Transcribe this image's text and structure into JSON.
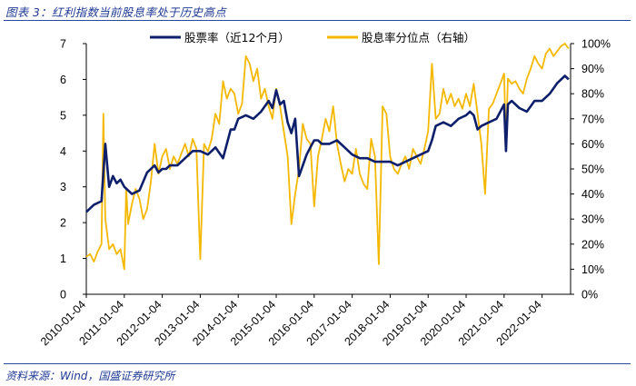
{
  "header": {
    "title": "图表 3：红利指数当前股息率处于历史高点"
  },
  "footer": {
    "source": "资料来源：Wind，国盛证券研究所"
  },
  "colors": {
    "dividend_yield": "#0d1f6b",
    "percentile": "#f5b800",
    "rule": "#2b4a9e"
  },
  "chart_data": {
    "type": "line",
    "title": "",
    "xlabel": "",
    "ylabel": "",
    "ylim_left": [
      0,
      7
    ],
    "ylim_right": [
      0,
      1
    ],
    "y_ticks_left": [
      "0",
      "1",
      "2",
      "3",
      "4",
      "5",
      "6",
      "7"
    ],
    "y_ticks_right": [
      "0%",
      "10%",
      "20%",
      "30%",
      "40%",
      "50%",
      "60%",
      "70%",
      "80%",
      "90%",
      "100%"
    ],
    "x_ticks": [
      "2010-01-04",
      "2011-01-04",
      "2012-01-04",
      "2013-01-04",
      "2014-01-04",
      "2015-01-04",
      "2016-01-04",
      "2017-01-04",
      "2018-01-04",
      "2019-01-04",
      "2020-01-04",
      "2021-01-04",
      "2022-01-04"
    ],
    "x_range": [
      2010.0,
      2022.75
    ],
    "legend": {
      "placement": "top"
    },
    "grid": false,
    "series": [
      {
        "name": "股票率（近12个月）",
        "axis": "left",
        "color": "#0d1f6b",
        "x": [
          2010.0,
          2010.2,
          2010.4,
          2010.5,
          2010.6,
          2010.7,
          2010.8,
          2010.9,
          2011.0,
          2011.2,
          2011.4,
          2011.6,
          2011.8,
          2011.9,
          2012.0,
          2012.1,
          2012.2,
          2012.4,
          2012.6,
          2012.8,
          2013.0,
          2013.2,
          2013.4,
          2013.6,
          2013.8,
          2013.9,
          2014.0,
          2014.2,
          2014.4,
          2014.6,
          2014.8,
          2014.9,
          2015.0,
          2015.1,
          2015.2,
          2015.3,
          2015.4,
          2015.5,
          2015.6,
          2015.7,
          2015.8,
          2015.9,
          2016.0,
          2016.1,
          2016.2,
          2016.4,
          2016.6,
          2016.8,
          2017.0,
          2017.2,
          2017.4,
          2017.6,
          2017.8,
          2018.0,
          2018.2,
          2018.4,
          2018.6,
          2018.8,
          2019.0,
          2019.1,
          2019.2,
          2019.4,
          2019.6,
          2019.8,
          2020.0,
          2020.1,
          2020.2,
          2020.3,
          2020.4,
          2020.6,
          2020.8,
          2021.0,
          2021.05,
          2021.1,
          2021.2,
          2021.4,
          2021.6,
          2021.8,
          2022.0,
          2022.2,
          2022.4,
          2022.6,
          2022.7
        ],
        "y": [
          2.3,
          2.5,
          2.6,
          4.2,
          3.0,
          3.3,
          3.1,
          3.2,
          3.0,
          2.8,
          2.9,
          3.4,
          3.6,
          3.4,
          3.5,
          3.5,
          3.6,
          3.6,
          3.8,
          4.0,
          4.0,
          3.9,
          4.1,
          3.8,
          4.6,
          4.6,
          4.9,
          5.0,
          4.9,
          5.1,
          5.4,
          5.2,
          5.7,
          5.3,
          5.4,
          4.8,
          4.5,
          4.9,
          3.3,
          3.6,
          3.9,
          4.1,
          4.3,
          4.3,
          4.2,
          4.2,
          4.3,
          4.1,
          3.9,
          3.8,
          3.8,
          3.7,
          3.7,
          3.7,
          3.6,
          3.7,
          3.8,
          3.9,
          4.0,
          4.3,
          4.7,
          4.8,
          4.7,
          4.9,
          5.0,
          5.1,
          5.0,
          4.6,
          4.7,
          4.8,
          4.9,
          5.3,
          4.0,
          5.3,
          5.4,
          5.2,
          5.1,
          5.4,
          5.4,
          5.6,
          5.9,
          6.1,
          6.0
        ]
      },
      {
        "name": "股息率分位点（右轴）",
        "axis": "right",
        "color": "#f5b800",
        "x": [
          2010.0,
          2010.1,
          2010.2,
          2010.3,
          2010.4,
          2010.45,
          2010.5,
          2010.6,
          2010.7,
          2010.8,
          2010.9,
          2011.0,
          2011.05,
          2011.1,
          2011.2,
          2011.3,
          2011.4,
          2011.5,
          2011.6,
          2011.7,
          2011.8,
          2011.9,
          2012.0,
          2012.1,
          2012.2,
          2012.3,
          2012.4,
          2012.5,
          2012.6,
          2012.7,
          2012.8,
          2012.9,
          2013.0,
          2013.1,
          2013.2,
          2013.3,
          2013.4,
          2013.5,
          2013.6,
          2013.7,
          2013.8,
          2013.9,
          2014.0,
          2014.1,
          2014.2,
          2014.3,
          2014.4,
          2014.5,
          2014.6,
          2014.7,
          2014.8,
          2014.9,
          2015.0,
          2015.1,
          2015.2,
          2015.3,
          2015.4,
          2015.5,
          2015.6,
          2015.7,
          2015.8,
          2015.9,
          2016.0,
          2016.1,
          2016.2,
          2016.3,
          2016.4,
          2016.5,
          2016.6,
          2016.7,
          2016.8,
          2016.9,
          2017.0,
          2017.1,
          2017.2,
          2017.3,
          2017.4,
          2017.5,
          2017.6,
          2017.7,
          2017.8,
          2017.9,
          2018.0,
          2018.1,
          2018.2,
          2018.3,
          2018.4,
          2018.5,
          2018.6,
          2018.7,
          2018.8,
          2018.9,
          2019.0,
          2019.1,
          2019.2,
          2019.3,
          2019.4,
          2019.5,
          2019.6,
          2019.7,
          2019.8,
          2019.9,
          2020.0,
          2020.1,
          2020.2,
          2020.3,
          2020.4,
          2020.5,
          2020.6,
          2020.7,
          2020.8,
          2020.9,
          2021.0,
          2021.05,
          2021.1,
          2021.2,
          2021.3,
          2021.4,
          2021.5,
          2021.6,
          2021.7,
          2021.8,
          2021.9,
          2022.0,
          2022.1,
          2022.2,
          2022.3,
          2022.4,
          2022.5,
          2022.6,
          2022.7
        ],
        "y": [
          0.15,
          0.16,
          0.13,
          0.17,
          0.2,
          0.72,
          0.3,
          0.18,
          0.2,
          0.16,
          0.18,
          0.1,
          0.42,
          0.28,
          0.36,
          0.42,
          0.38,
          0.3,
          0.34,
          0.45,
          0.6,
          0.48,
          0.55,
          0.58,
          0.5,
          0.55,
          0.52,
          0.56,
          0.6,
          0.55,
          0.62,
          0.58,
          0.14,
          0.6,
          0.57,
          0.62,
          0.72,
          0.68,
          0.85,
          0.78,
          0.82,
          0.8,
          0.72,
          0.76,
          0.95,
          0.92,
          0.85,
          0.9,
          0.78,
          0.82,
          0.75,
          0.7,
          0.82,
          0.75,
          0.65,
          0.55,
          0.28,
          0.4,
          0.5,
          0.68,
          0.62,
          0.6,
          0.35,
          0.55,
          0.62,
          0.7,
          0.65,
          0.75,
          0.6,
          0.52,
          0.45,
          0.5,
          0.48,
          0.58,
          0.48,
          0.44,
          0.42,
          0.62,
          0.55,
          0.12,
          0.75,
          0.72,
          0.55,
          0.5,
          0.48,
          0.52,
          0.55,
          0.5,
          0.58,
          0.55,
          0.52,
          0.58,
          0.65,
          0.92,
          0.7,
          0.72,
          0.82,
          0.76,
          0.8,
          0.75,
          0.78,
          0.74,
          0.8,
          0.75,
          0.84,
          0.72,
          0.6,
          0.4,
          0.74,
          0.76,
          0.8,
          0.84,
          0.88,
          0.6,
          0.86,
          0.84,
          0.85,
          0.82,
          0.8,
          0.86,
          0.9,
          0.95,
          0.92,
          0.9,
          0.96,
          0.98,
          0.95,
          0.97,
          0.99,
          1.0,
          0.98
        ]
      }
    ]
  }
}
